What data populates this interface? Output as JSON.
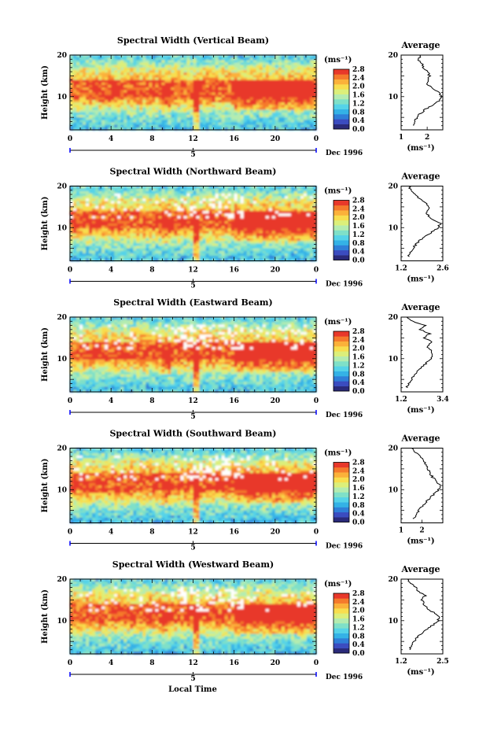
{
  "figure": {
    "x_axis_label": "Local Time",
    "date_label": "Dec 1996",
    "date_marker": "5",
    "colorbar_unit": "(ms⁻¹)",
    "colorbar_ticks": [
      "0.0",
      "0.4",
      "0.8",
      "1.2",
      "1.6",
      "2.0",
      "2.4",
      "2.8"
    ],
    "average_title": "Average",
    "average_unit": "(ms⁻¹)",
    "height_label": "Height (km)",
    "time_ticks": [
      "0",
      "4",
      "8",
      "12",
      "16",
      "20",
      "0"
    ],
    "height_ticks": [
      "10",
      "20"
    ],
    "colormap": [
      "#2a2a7a",
      "#3b4cc0",
      "#2f7fd8",
      "#34b2e6",
      "#55d3e8",
      "#7fe0c8",
      "#b4ecb0",
      "#dcef7a",
      "#f8de4e",
      "#fbb13a",
      "#f57a2c",
      "#e8382a"
    ]
  },
  "chart_data": [
    {
      "type": "heatmap",
      "title": "Spectral Width (Vertical Beam)",
      "x": {
        "min": 0,
        "max": 24,
        "ticks": [
          0,
          4,
          8,
          12,
          16,
          20,
          24
        ]
      },
      "y": {
        "min": 2,
        "max": 20,
        "ticks": [
          10,
          20
        ]
      },
      "zlim": [
        0.0,
        2.8
      ],
      "profile": {
        "xticks": [
          "1",
          "2"
        ],
        "xlim": [
          1.0,
          2.6
        ],
        "tick_values": [
          1,
          2
        ],
        "heights": [
          3,
          4,
          5,
          6,
          7,
          8,
          9,
          10,
          11,
          12,
          13,
          14,
          15,
          16,
          17,
          18,
          19,
          20
        ],
        "values": [
          1.45,
          1.55,
          1.6,
          1.75,
          1.95,
          2.2,
          2.45,
          2.55,
          2.45,
          2.2,
          2.0,
          2.05,
          2.1,
          2.0,
          1.85,
          1.8,
          1.65,
          1.75
        ]
      }
    },
    {
      "type": "heatmap",
      "title": "Spectral Width (Northward Beam)",
      "x": {
        "min": 0,
        "max": 24,
        "ticks": [
          0,
          4,
          8,
          12,
          16,
          20,
          24
        ]
      },
      "y": {
        "min": 2,
        "max": 20,
        "ticks": [
          10,
          20
        ]
      },
      "zlim": [
        0.0,
        2.8
      ],
      "profile": {
        "xticks": [
          "1.2",
          "2.6"
        ],
        "xlim": [
          1.2,
          2.6
        ],
        "tick_values": [
          1.2,
          2.6
        ],
        "heights": [
          3,
          4,
          5,
          6,
          7,
          8,
          9,
          10,
          11,
          12,
          13,
          14,
          15,
          16,
          17,
          18,
          19,
          20
        ],
        "values": [
          1.45,
          1.5,
          1.6,
          1.7,
          1.85,
          2.05,
          2.25,
          2.45,
          2.5,
          2.25,
          2.1,
          2.05,
          2.15,
          2.0,
          1.8,
          1.65,
          1.55,
          1.45
        ]
      }
    },
    {
      "type": "heatmap",
      "title": "Spectral Width (Eastward Beam)",
      "x": {
        "min": 0,
        "max": 24,
        "ticks": [
          0,
          4,
          8,
          12,
          16,
          20,
          24
        ]
      },
      "y": {
        "min": 2,
        "max": 20,
        "ticks": [
          10,
          20
        ]
      },
      "zlim": [
        0.0,
        2.8
      ],
      "profile": {
        "xticks": [
          "1.2",
          "3.4"
        ],
        "xlim": [
          1.2,
          3.4
        ],
        "tick_values": [
          1.2,
          3.4
        ],
        "heights": [
          3,
          4,
          5,
          6,
          7,
          8,
          9,
          10,
          11,
          12,
          13,
          14,
          15,
          16,
          17,
          18,
          19,
          20
        ],
        "values": [
          1.5,
          1.6,
          1.75,
          1.9,
          2.1,
          2.3,
          2.55,
          2.75,
          2.9,
          2.8,
          2.55,
          2.85,
          2.4,
          2.7,
          2.2,
          2.5,
          1.8,
          1.5
        ]
      }
    },
    {
      "type": "heatmap",
      "title": "Spectral Width (Southward Beam)",
      "x": {
        "min": 0,
        "max": 24,
        "ticks": [
          0,
          4,
          8,
          12,
          16,
          20,
          24
        ]
      },
      "y": {
        "min": 2,
        "max": 20,
        "ticks": [
          10,
          20
        ]
      },
      "zlim": [
        0.0,
        2.8
      ],
      "profile": {
        "xticks": [
          "1",
          "2"
        ],
        "xlim": [
          1.0,
          3.0
        ],
        "tick_values": [
          1,
          2
        ],
        "heights": [
          3,
          4,
          5,
          6,
          7,
          8,
          9,
          10,
          11,
          12,
          13,
          14,
          15,
          16,
          17,
          18,
          19,
          20
        ],
        "values": [
          1.6,
          1.7,
          1.85,
          2.0,
          2.2,
          2.4,
          2.6,
          2.8,
          2.85,
          2.7,
          2.5,
          2.4,
          2.3,
          2.2,
          2.05,
          1.9,
          1.7,
          1.5
        ]
      }
    },
    {
      "type": "heatmap",
      "title": "Spectral Width (Westward Beam)",
      "x": {
        "min": 0,
        "max": 24,
        "ticks": [
          0,
          4,
          8,
          12,
          16,
          20,
          24
        ]
      },
      "y": {
        "min": 2,
        "max": 20,
        "ticks": [
          10,
          20
        ]
      },
      "zlim": [
        0.0,
        2.8
      ],
      "profile": {
        "xticks": [
          "1.2",
          "2.5"
        ],
        "xlim": [
          1.2,
          2.5
        ],
        "tick_values": [
          1.2,
          2.5
        ],
        "heights": [
          3,
          4,
          5,
          6,
          7,
          8,
          9,
          10,
          11,
          12,
          13,
          14,
          15,
          16,
          17,
          18,
          19,
          20
        ],
        "values": [
          1.45,
          1.5,
          1.6,
          1.7,
          1.85,
          2.0,
          2.2,
          2.35,
          2.4,
          2.2,
          2.0,
          1.9,
          1.85,
          1.95,
          1.75,
          1.65,
          1.5,
          1.4
        ]
      }
    }
  ]
}
